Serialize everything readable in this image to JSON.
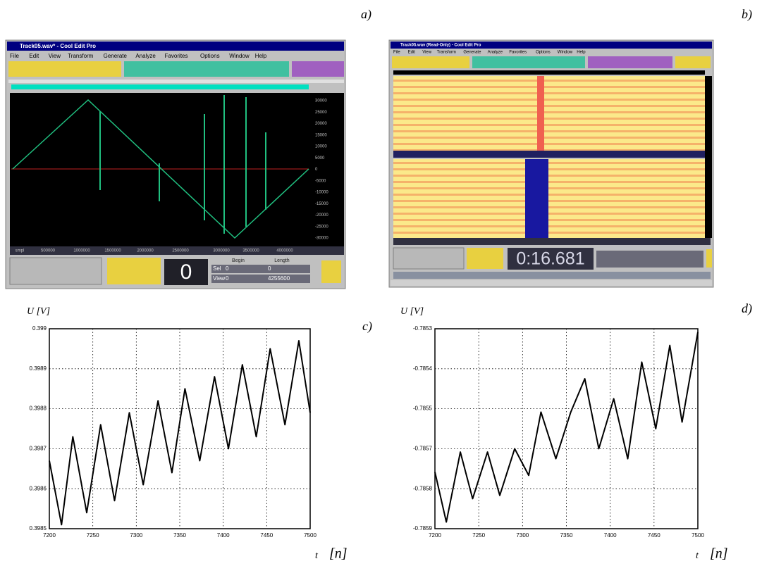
{
  "labels": {
    "a": "a)",
    "b": "b)",
    "c": "c)",
    "d": "d)"
  },
  "screenshot_a": {
    "title": "Track05.wav* - Cool Edit Pro",
    "menu": [
      "File",
      "Edit",
      "View",
      "Transform",
      "Generate",
      "Analyze",
      "Favorites",
      "Options",
      "Window",
      "Help"
    ],
    "scale": [
      "30000",
      "25000",
      "20000",
      "15000",
      "10000",
      "5000",
      "0",
      "-5000",
      "-10000",
      "-15000",
      "-20000",
      "-25000",
      "-30000"
    ],
    "time_axis": [
      "smpl",
      "500000",
      "1000000",
      "1500000",
      "2000000",
      "2500000",
      "3000000",
      "3500000",
      "4000000"
    ],
    "time_display": "0",
    "columns": [
      "Begin",
      "Length"
    ],
    "rows": [
      [
        "Sel",
        "0",
        "0"
      ],
      [
        "View",
        "0",
        "4255600"
      ]
    ]
  },
  "screenshot_b": {
    "title": "Track05.wav (Read-Only) - Cool Edit Pro",
    "menu": [
      "File",
      "Edit",
      "View",
      "Transform",
      "Generate",
      "Analyze",
      "Favorites",
      "Options",
      "Window",
      "Help"
    ],
    "time_display": "0:16.681"
  },
  "chart_data": [
    {
      "type": "line",
      "y_label": "U  [V]",
      "x_label": "t",
      "x_unit": "[n]",
      "color": "#000000",
      "grid": true,
      "xlim": [
        7200,
        7500
      ],
      "xticks": [
        7200,
        7250,
        7300,
        7350,
        7400,
        7450,
        7500
      ],
      "ylim": [
        0.3985,
        0.399
      ],
      "yticks": [
        0.3985,
        0.3986,
        0.3987,
        0.3988,
        0.3989,
        0.399
      ],
      "x": [
        7200,
        7214,
        7227,
        7243,
        7259,
        7275,
        7292,
        7308,
        7325,
        7341,
        7356,
        7373,
        7390,
        7406,
        7422,
        7438,
        7454,
        7471,
        7487,
        7500
      ],
      "values": [
        0.39867,
        0.39851,
        0.39873,
        0.39854,
        0.39876,
        0.39857,
        0.39879,
        0.39861,
        0.39882,
        0.39864,
        0.39885,
        0.39867,
        0.39888,
        0.3987,
        0.39891,
        0.39873,
        0.39895,
        0.39876,
        0.39897,
        0.39879
      ]
    },
    {
      "type": "line",
      "y_label": "U  [V]",
      "x_label": "t",
      "x_unit": "[n]",
      "color": "#000000",
      "grid": true,
      "xlim": [
        7200,
        7500
      ],
      "xticks": [
        7200,
        7250,
        7300,
        7350,
        7400,
        7450,
        7500
      ],
      "ylim": [
        -0.7859,
        -0.7853
      ],
      "yticks": [
        {
          "value": -0.7859,
          "label": "-0.7859"
        },
        {
          "value": -0.78578,
          "label": "-0.7858"
        },
        {
          "value": -0.78566,
          "label": "-0.7857"
        },
        {
          "value": -0.78554,
          "label": "-0.7855"
        },
        {
          "value": -0.78542,
          "label": "-0.7854"
        },
        {
          "value": -0.7853,
          "label": "-0.7853"
        }
      ],
      "x": [
        7200,
        7213,
        7229,
        7243,
        7260,
        7274,
        7291,
        7307,
        7321,
        7338,
        7355,
        7371,
        7387,
        7404,
        7420,
        7436,
        7452,
        7468,
        7482,
        7500
      ],
      "values": [
        -0.78573,
        -0.78588,
        -0.78567,
        -0.78581,
        -0.78567,
        -0.7858,
        -0.78566,
        -0.78574,
        -0.78555,
        -0.78569,
        -0.78555,
        -0.78545,
        -0.78566,
        -0.78551,
        -0.78569,
        -0.7854,
        -0.7856,
        -0.78535,
        -0.78558,
        -0.78531
      ]
    }
  ]
}
